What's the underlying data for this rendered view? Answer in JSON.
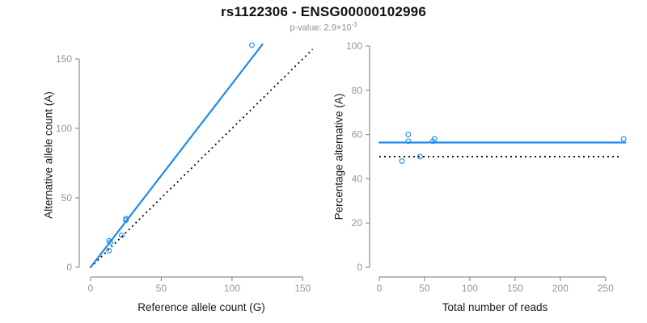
{
  "title": "rs1122306 - ENSG00000102996",
  "subtitle": {
    "text": "p-value: 2.9×10",
    "exponent": "-3"
  },
  "colors": {
    "accent_blue": "#1e8bf0",
    "axis_gray": "#909090",
    "tick_label_gray": "#969696",
    "reference_black": "#0a0a0a",
    "label_black": "#1a1a1a"
  },
  "chart_data": [
    {
      "type": "scatter",
      "panel": "left",
      "xlabel": "Reference allele count (G)",
      "ylabel": "Alternative allele count (A)",
      "xlim": [
        0,
        157
      ],
      "ylim": [
        0,
        164
      ],
      "xticks": [
        0,
        50,
        100,
        150
      ],
      "yticks": [
        0,
        50,
        100,
        150
      ],
      "grid": false,
      "points": [
        [
          13,
          12
        ],
        [
          13,
          19
        ],
        [
          14,
          18
        ],
        [
          22,
          23
        ],
        [
          25,
          34
        ],
        [
          25,
          35
        ],
        [
          114,
          160
        ]
      ],
      "fit_line": {
        "name": "fitted-allelic-ratio",
        "x1": 0,
        "y1": 0,
        "x2": 121.5,
        "y2": 160.5,
        "style": "solid"
      },
      "ref_line": {
        "name": "identity-line-y-equals-x",
        "x1": 0,
        "y1": 0,
        "x2": 157,
        "y2": 157,
        "style": "dotted"
      }
    },
    {
      "type": "scatter",
      "panel": "right",
      "xlabel": "Total number of reads",
      "ylabel": "Percentage alternative (A)",
      "xlim": [
        0,
        273
      ],
      "ylim": [
        0,
        100
      ],
      "xticks": [
        0,
        50,
        100,
        150,
        200,
        250
      ],
      "yticks": [
        0,
        20,
        40,
        60,
        80,
        100
      ],
      "grid": false,
      "points": [
        [
          25,
          48
        ],
        [
          32,
          60
        ],
        [
          32,
          57
        ],
        [
          45,
          50
        ],
        [
          59,
          57
        ],
        [
          61,
          58
        ],
        [
          270,
          58
        ]
      ],
      "fit_line": {
        "name": "mean-percentage-line",
        "x1": 0,
        "y1": 56.4,
        "x2": 272,
        "y2": 56.4,
        "style": "solid"
      },
      "ref_line": {
        "name": "fifty-percent-line",
        "x1": 0,
        "y1": 50,
        "x2": 265,
        "y2": 50,
        "style": "dotted"
      }
    }
  ]
}
